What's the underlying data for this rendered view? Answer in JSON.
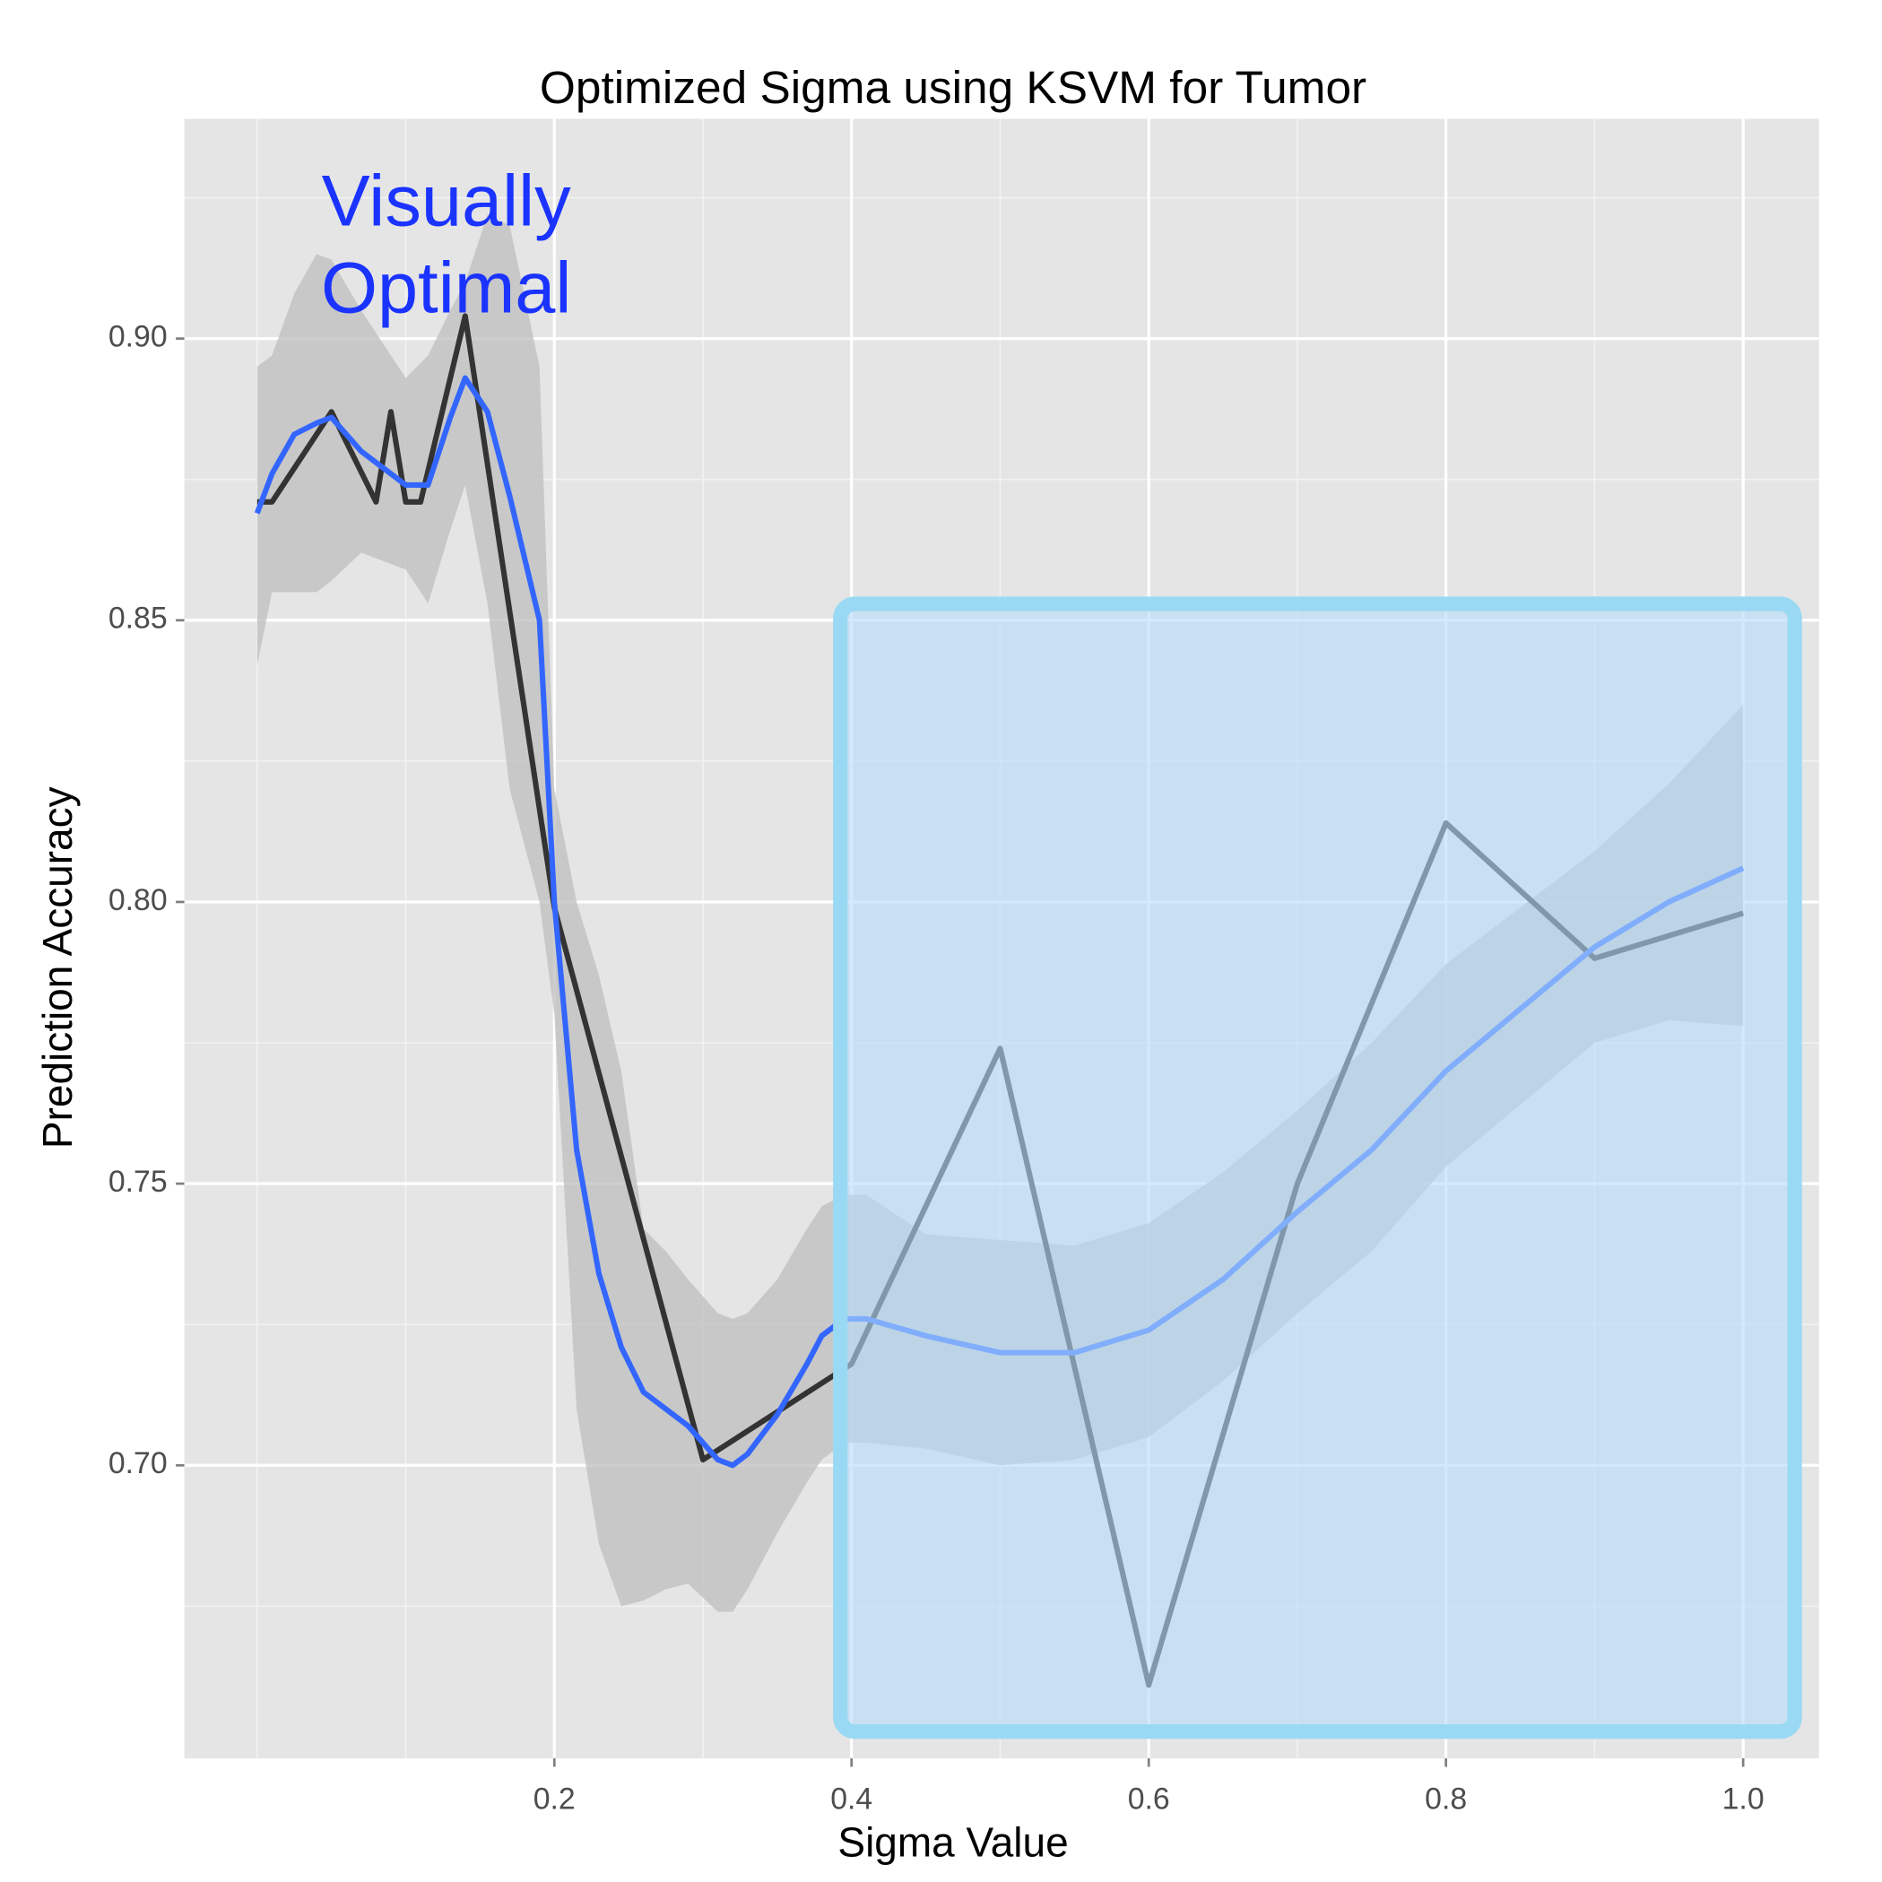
{
  "chart_data": {
    "type": "line",
    "title": "Optimized Sigma using KSVM for Tumor",
    "x_label": "Sigma Value",
    "y_label": "Prediction Accuracy",
    "annotation_lines": [
      "Visually",
      "Optimal"
    ],
    "annotation_color": "#1a33ff",
    "xlim": [
      -0.049,
      1.051
    ],
    "ylim": [
      0.648,
      0.939
    ],
    "xticks": [
      0.2,
      0.4,
      0.6,
      {
        "value": 0.8,
        "label": "0.8"
      },
      {
        "value": 1.0,
        "label": "1.0"
      }
    ],
    "yticks": [
      {
        "value": 0.7,
        "label": "0.70"
      },
      0.75,
      {
        "value": 0.8,
        "label": "0.80"
      },
      0.85,
      {
        "value": 0.9,
        "label": "0.90"
      }
    ],
    "xminor": [
      0,
      0.1,
      0.3,
      0.5,
      0.7,
      0.9
    ],
    "yminor": [
      0.675,
      0.725,
      0.775,
      0.825,
      0.875,
      0.925
    ],
    "grid": true,
    "band_color": "#bdbdbd",
    "series": [
      {
        "color": "#333333",
        "x": [
          0,
          0.01,
          0.05,
          0.08,
          0.09,
          0.1,
          0.11,
          0.14,
          0.2,
          0.3,
          0.4,
          0.5,
          0.6,
          0.7,
          0.8,
          0.9,
          1.0
        ],
        "values": [
          0.871,
          0.871,
          0.887,
          0.871,
          0.887,
          0.871,
          0.871,
          0.904,
          0.799,
          0.701,
          0.718,
          0.774,
          0.661,
          0.75,
          0.814,
          0.79,
          0.798
        ]
      },
      {
        "color": "#3366ff",
        "x": [
          0,
          0.01,
          0.025,
          0.04,
          0.05,
          0.07,
          0.1,
          0.115,
          0.13,
          0.14,
          0.155,
          0.17,
          0.19,
          0.2,
          0.215,
          0.23,
          0.245,
          0.26,
          0.275,
          0.29,
          0.31,
          0.32,
          0.33,
          0.35,
          0.37,
          0.38,
          0.395,
          0.41,
          0.45,
          0.5,
          0.55,
          0.6,
          0.65,
          0.7,
          0.75,
          0.8,
          0.85,
          0.9,
          0.95,
          1.0
        ],
        "values": [
          0.869,
          0.876,
          0.883,
          0.885,
          0.886,
          0.88,
          0.874,
          0.874,
          0.886,
          0.893,
          0.887,
          0.872,
          0.85,
          0.8,
          0.756,
          0.734,
          0.721,
          0.713,
          0.71,
          0.707,
          0.701,
          0.7,
          0.702,
          0.709,
          0.718,
          0.723,
          0.726,
          0.726,
          0.723,
          0.72,
          0.72,
          0.724,
          0.733,
          0.745,
          0.756,
          0.77,
          0.781,
          0.792,
          0.8,
          0.806
        ],
        "upper": [
          0.895,
          0.897,
          0.908,
          0.915,
          0.914,
          0.905,
          0.893,
          0.897,
          0.905,
          0.91,
          0.922,
          0.92,
          0.895,
          0.82,
          0.8,
          0.787,
          0.77,
          0.742,
          0.738,
          0.733,
          0.727,
          0.726,
          0.727,
          0.733,
          0.742,
          0.746,
          0.748,
          0.748,
          0.741,
          0.74,
          0.739,
          0.743,
          0.752,
          0.763,
          0.775,
          0.789,
          0.799,
          0.809,
          0.821,
          0.835
        ],
        "lower": [
          0.842,
          0.855,
          0.855,
          0.855,
          0.857,
          0.862,
          0.859,
          0.853,
          0.866,
          0.874,
          0.853,
          0.82,
          0.8,
          0.78,
          0.71,
          0.686,
          0.675,
          0.676,
          0.678,
          0.679,
          0.674,
          0.674,
          0.678,
          0.688,
          0.697,
          0.701,
          0.704,
          0.704,
          0.703,
          0.7,
          0.701,
          0.705,
          0.715,
          0.727,
          0.738,
          0.753,
          0.764,
          0.775,
          0.779,
          0.778
        ]
      }
    ]
  }
}
